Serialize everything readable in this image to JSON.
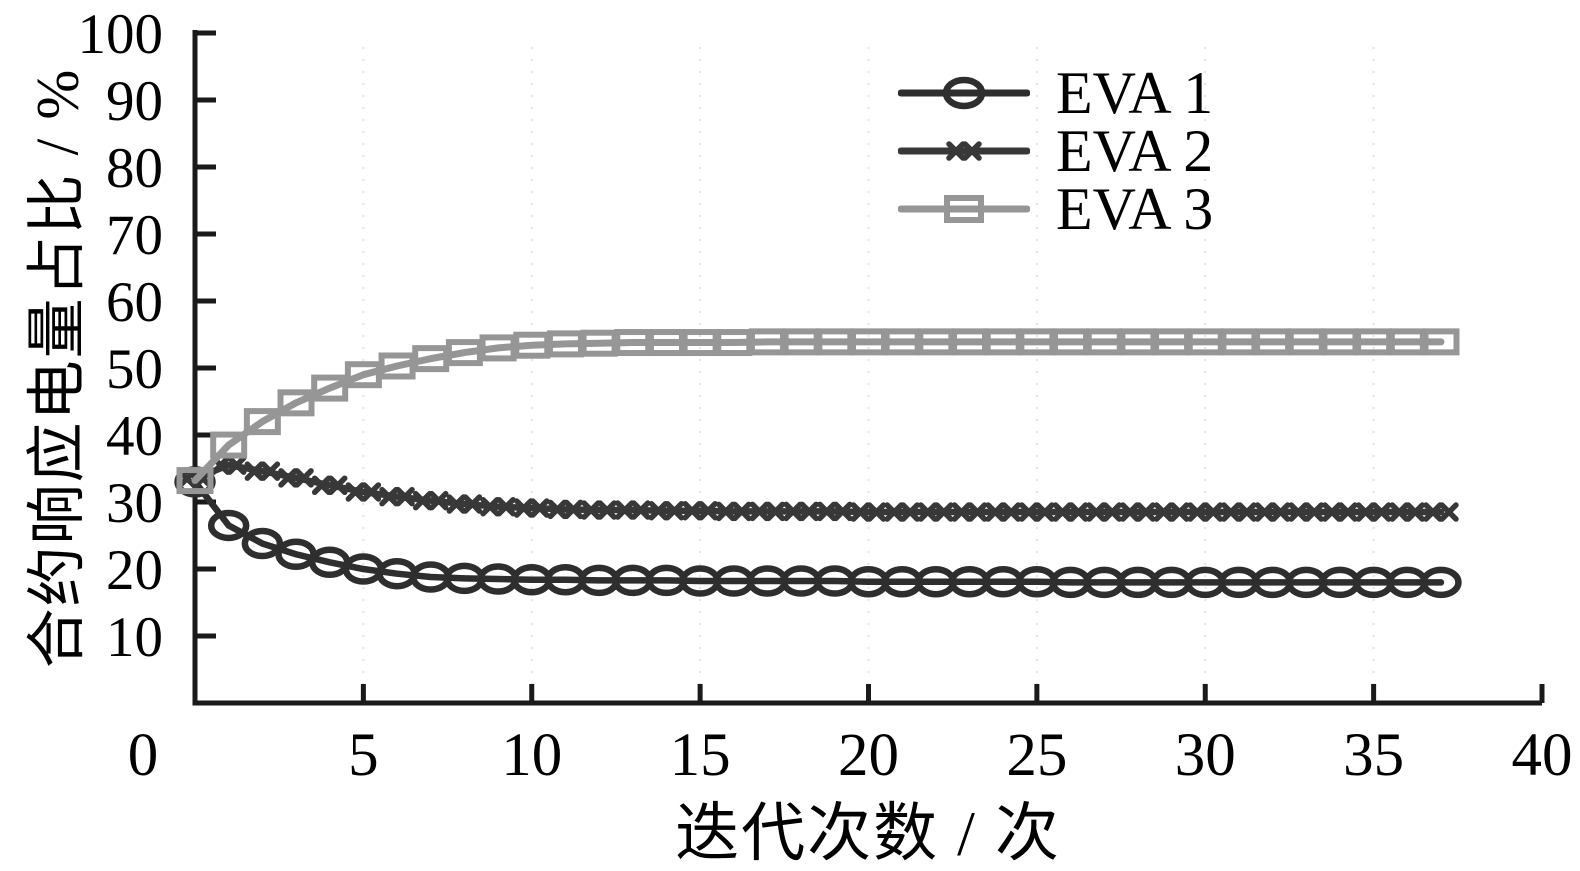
{
  "figure": {
    "background": "#ffffff",
    "axis_color": "#1a1a1a",
    "gridline_color": "#e4e4e4"
  },
  "chart_data": {
    "type": "line",
    "title": "",
    "xlabel": "迭代次数 / 次",
    "ylabel": "合约响应电量占比 / %",
    "xlim": [
      0,
      40
    ],
    "ylim": [
      0,
      100
    ],
    "x_ticks": [
      0,
      5,
      10,
      15,
      20,
      25,
      30,
      35,
      40
    ],
    "y_ticks": [
      10,
      20,
      30,
      40,
      50,
      60,
      70,
      80,
      90,
      100
    ],
    "grid": "faint dotted vertical gridlines at x ticks",
    "legend_position": "upper right",
    "x": [
      0,
      1,
      2,
      3,
      4,
      5,
      6,
      7,
      8,
      9,
      10,
      11,
      12,
      13,
      14,
      15,
      16,
      17,
      18,
      19,
      20,
      21,
      22,
      23,
      24,
      25,
      26,
      27,
      28,
      29,
      30,
      31,
      32,
      33,
      34,
      35,
      36,
      37
    ],
    "series": [
      {
        "name": "EVA 1",
        "marker": "open-ellipse",
        "color": "#2e2e2e",
        "values": [
          33.0,
          26.5,
          23.8,
          22.2,
          21.0,
          20.0,
          19.3,
          18.8,
          18.6,
          18.5,
          18.4,
          18.4,
          18.3,
          18.3,
          18.3,
          18.2,
          18.2,
          18.2,
          18.2,
          18.2,
          18.1,
          18.1,
          18.1,
          18.1,
          18.1,
          18.1,
          18.0,
          18.0,
          18.0,
          18.0,
          18.0,
          18.0,
          18.0,
          18.0,
          18.0,
          18.0,
          18.0,
          18.0
        ]
      },
      {
        "name": "EVA 2",
        "marker": "double-x",
        "color": "#383838",
        "values": [
          33.5,
          35.5,
          34.6,
          33.6,
          32.5,
          31.5,
          30.8,
          30.2,
          29.7,
          29.3,
          29.1,
          28.9,
          28.8,
          28.8,
          28.7,
          28.7,
          28.6,
          28.6,
          28.6,
          28.6,
          28.5,
          28.5,
          28.5,
          28.5,
          28.5,
          28.5,
          28.5,
          28.5,
          28.5,
          28.5,
          28.5,
          28.5,
          28.5,
          28.5,
          28.5,
          28.5,
          28.5,
          28.5
        ]
      },
      {
        "name": "EVA 3",
        "marker": "open-square",
        "color": "#969696",
        "values": [
          33.2,
          38.5,
          42.0,
          44.8,
          47.0,
          49.0,
          50.3,
          51.4,
          52.3,
          53.0,
          53.4,
          53.6,
          53.7,
          53.8,
          53.8,
          53.8,
          53.8,
          53.9,
          53.9,
          53.9,
          53.9,
          53.9,
          53.9,
          53.9,
          53.9,
          53.9,
          53.9,
          53.9,
          53.9,
          53.9,
          53.9,
          53.9,
          53.9,
          53.9,
          53.9,
          53.9,
          53.9,
          53.9
        ]
      }
    ]
  }
}
